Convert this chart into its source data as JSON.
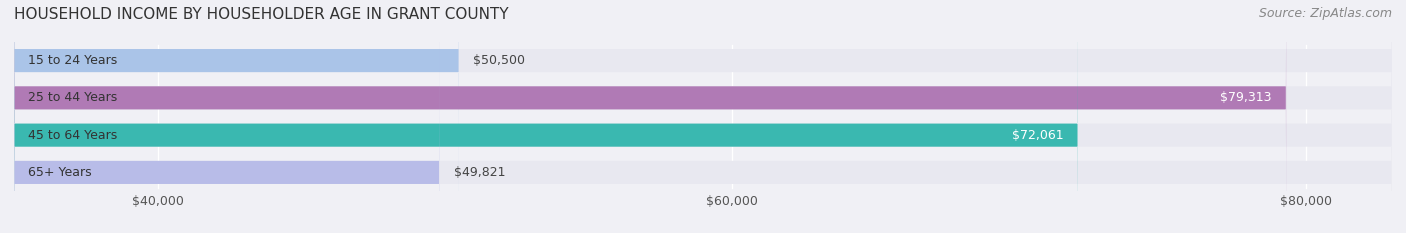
{
  "title": "HOUSEHOLD INCOME BY HOUSEHOLDER AGE IN GRANT COUNTY",
  "source": "Source: ZipAtlas.com",
  "categories": [
    "15 to 24 Years",
    "25 to 44 Years",
    "45 to 64 Years",
    "65+ Years"
  ],
  "values": [
    50500,
    79313,
    72061,
    49821
  ],
  "bar_colors": [
    "#aac4e8",
    "#b07ab5",
    "#3ab8b0",
    "#b8bce8"
  ],
  "bar_labels": [
    "$50,500",
    "$79,313",
    "$72,061",
    "$49,821"
  ],
  "xmin": 35000,
  "xmax": 83000,
  "xticks": [
    40000,
    60000,
    80000
  ],
  "xticklabels": [
    "$40,000",
    "$60,000",
    "$80,000"
  ],
  "background_color": "#f0f0f5",
  "bar_background_color": "#e8e8f0",
  "title_fontsize": 11,
  "source_fontsize": 9,
  "label_fontsize": 9,
  "tick_fontsize": 9
}
